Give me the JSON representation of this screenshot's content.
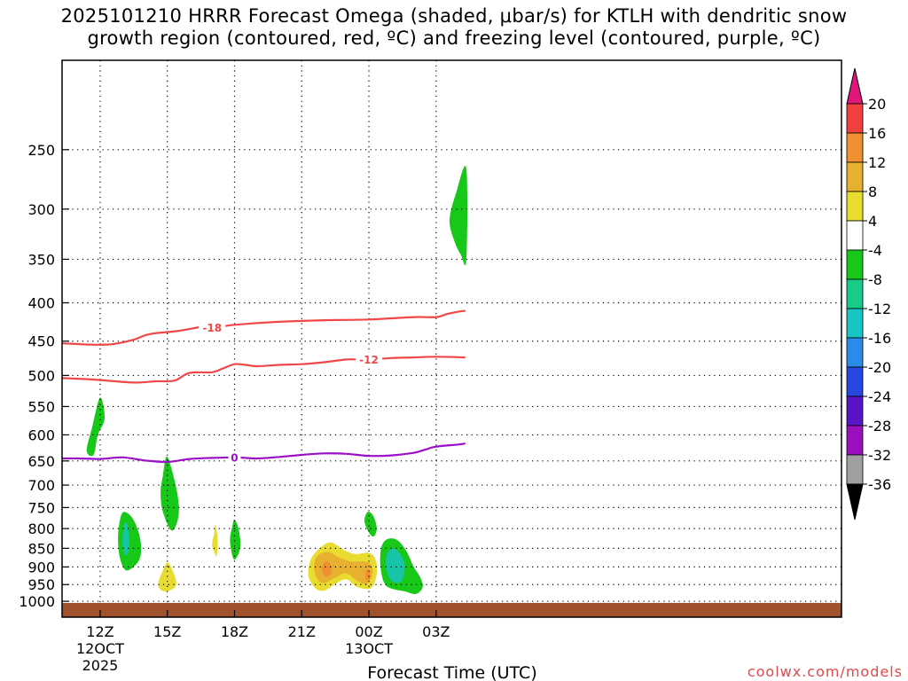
{
  "chart_data": {
    "type": "contour",
    "title_line1": "2025101210 HRRR Forecast Omega (shaded, μbar/s) for KTLH with dendritic snow",
    "title_line2": "growth region (contoured, red, ºC) and freezing level (contoured, purple, ºC)",
    "xlabel": "Forecast Time (UTC)",
    "credit": "coolwx.com/models",
    "x_range_hours": [
      -1.7,
      33.1
    ],
    "x_ticks": [
      {
        "hour": 0,
        "label": "12Z",
        "sub1": "12OCT",
        "sub2": "2025"
      },
      {
        "hour": 3,
        "label": "15Z",
        "sub1": "",
        "sub2": ""
      },
      {
        "hour": 6,
        "label": "18Z",
        "sub1": "",
        "sub2": ""
      },
      {
        "hour": 9,
        "label": "21Z",
        "sub1": "",
        "sub2": ""
      },
      {
        "hour": 12,
        "label": "00Z",
        "sub1": "13OCT",
        "sub2": ""
      },
      {
        "hour": 15,
        "label": "03Z",
        "sub1": "",
        "sub2": ""
      }
    ],
    "y_axis": "pressure (hPa), log scale, inverted",
    "y_range_hpa": [
      190,
      1050
    ],
    "y_ticks": [
      250,
      300,
      350,
      400,
      450,
      500,
      550,
      600,
      650,
      700,
      750,
      800,
      850,
      900,
      950,
      1000
    ],
    "gridlines": true,
    "terrain_top_hpa": 1005,
    "colorbar": {
      "bounds": [
        -36,
        -32,
        -28,
        -24,
        -20,
        -16,
        -12,
        -8,
        -4,
        4,
        8,
        12,
        16,
        20
      ],
      "labels": [
        "20",
        "16",
        "12",
        "8",
        "4",
        "-4",
        "-8",
        "-12",
        "-16",
        "-20",
        "-24",
        "-28",
        "-32",
        "-36"
      ],
      "above_color": "#e0167a",
      "below_color": "#000000",
      "bins": [
        {
          "range": [
            16,
            20
          ],
          "color": "#f04040"
        },
        {
          "range": [
            12,
            16
          ],
          "color": "#f09030"
        },
        {
          "range": [
            8,
            12
          ],
          "color": "#e8b030"
        },
        {
          "range": [
            4,
            8
          ],
          "color": "#e8dc30"
        },
        {
          "range": [
            -4,
            4
          ],
          "color": "#ffffff"
        },
        {
          "range": [
            -8,
            -4
          ],
          "color": "#18c818"
        },
        {
          "range": [
            -12,
            -8
          ],
          "color": "#18cc88"
        },
        {
          "range": [
            -16,
            -12
          ],
          "color": "#18c4c4"
        },
        {
          "range": [
            -20,
            -16
          ],
          "color": "#2a8ce8"
        },
        {
          "range": [
            -24,
            -20
          ],
          "color": "#2846e0"
        },
        {
          "range": [
            -28,
            -24
          ],
          "color": "#5a14c8"
        },
        {
          "range": [
            -32,
            -28
          ],
          "color": "#9a10c0"
        },
        {
          "range": [
            -36,
            -32
          ],
          "color": "#a0a0a0"
        }
      ]
    },
    "contours": [
      {
        "name": "contour-minus-18C",
        "value": -18,
        "label": "-18",
        "color": "#f04848",
        "label_hour": 5.0,
        "points": [
          [
            -1.7,
            453
          ],
          [
            -1.0,
            454
          ],
          [
            -0.2,
            455
          ],
          [
            0.6,
            454
          ],
          [
            1.5,
            448
          ],
          [
            2.0,
            442
          ],
          [
            2.5,
            439
          ],
          [
            3.5,
            436
          ],
          [
            4.5,
            431
          ],
          [
            5.0,
            432
          ],
          [
            6.0,
            428
          ],
          [
            8.0,
            424
          ],
          [
            10.0,
            422
          ],
          [
            12.0,
            421
          ],
          [
            14.0,
            418
          ],
          [
            15.0,
            418
          ],
          [
            15.5,
            414
          ],
          [
            16.0,
            411
          ],
          [
            16.3,
            410
          ]
        ]
      },
      {
        "name": "contour-minus-12C",
        "value": -12,
        "label": "-12",
        "color": "#f04848",
        "label_hour": 12.0,
        "points": [
          [
            -1.7,
            504
          ],
          [
            -1.0,
            505
          ],
          [
            0.0,
            507
          ],
          [
            1.5,
            511
          ],
          [
            2.5,
            509
          ],
          [
            3.0,
            509
          ],
          [
            3.4,
            507
          ],
          [
            4.0,
            496
          ],
          [
            5.0,
            495
          ],
          [
            5.5,
            489
          ],
          [
            6.0,
            483
          ],
          [
            6.5,
            484
          ],
          [
            7.0,
            486
          ],
          [
            8.0,
            484
          ],
          [
            9.0,
            483
          ],
          [
            10.0,
            480
          ],
          [
            11.0,
            476
          ],
          [
            11.5,
            476
          ],
          [
            12.0,
            476
          ],
          [
            13.0,
            474
          ],
          [
            14.0,
            473
          ],
          [
            15.0,
            472
          ],
          [
            16.3,
            473
          ]
        ]
      },
      {
        "name": "contour-0C",
        "value": 0,
        "label": "0",
        "color": "#9a10c8",
        "label_hour": 6.0,
        "points": [
          [
            -1.7,
            645
          ],
          [
            -1.0,
            645
          ],
          [
            0.0,
            646
          ],
          [
            1.0,
            643
          ],
          [
            2.0,
            649
          ],
          [
            3.0,
            652
          ],
          [
            4.0,
            646
          ],
          [
            5.0,
            644
          ],
          [
            6.0,
            643
          ],
          [
            7.0,
            645
          ],
          [
            8.0,
            642
          ],
          [
            9.0,
            638
          ],
          [
            10.0,
            635
          ],
          [
            11.0,
            636
          ],
          [
            12.0,
            640
          ],
          [
            13.0,
            639
          ],
          [
            14.0,
            634
          ],
          [
            14.5,
            628
          ],
          [
            15.0,
            622
          ],
          [
            16.0,
            618
          ],
          [
            16.3,
            616
          ]
        ]
      }
    ],
    "omega_regions": [
      {
        "name": "green-blob-12z-600",
        "color": "#18c818",
        "points": [
          [
            -0.3,
            638
          ],
          [
            -0.1,
            600
          ],
          [
            0.2,
            570
          ],
          [
            0.0,
            535
          ],
          [
            -0.35,
            585
          ],
          [
            -0.6,
            630
          ]
        ]
      },
      {
        "name": "green-blob-13z-850",
        "color": "#18c818",
        "points": [
          [
            0.8,
            825
          ],
          [
            0.9,
            775
          ],
          [
            1.1,
            760
          ],
          [
            1.5,
            780
          ],
          [
            1.8,
            830
          ],
          [
            1.75,
            880
          ],
          [
            1.2,
            910
          ],
          [
            0.9,
            880
          ]
        ]
      },
      {
        "name": "teal-core-13z-830",
        "color": "#18c4a8",
        "points": [
          [
            1.0,
            830
          ],
          [
            1.05,
            795
          ],
          [
            1.15,
            785
          ],
          [
            1.25,
            800
          ],
          [
            1.3,
            840
          ],
          [
            1.2,
            868
          ],
          [
            1.05,
            860
          ]
        ]
      },
      {
        "name": "green-blob-15z-720",
        "color": "#18c818",
        "points": [
          [
            2.7,
            715
          ],
          [
            2.8,
            680
          ],
          [
            2.95,
            642
          ],
          [
            3.15,
            660
          ],
          [
            3.45,
            720
          ],
          [
            3.5,
            770
          ],
          [
            3.2,
            805
          ],
          [
            2.8,
            760
          ]
        ]
      },
      {
        "name": "yellow-blob-15z-950",
        "color": "#e8dc30",
        "points": [
          [
            2.6,
            945
          ],
          [
            2.8,
            910
          ],
          [
            3.0,
            888
          ],
          [
            3.2,
            905
          ],
          [
            3.4,
            950
          ],
          [
            3.0,
            970
          ],
          [
            2.7,
            965
          ]
        ]
      },
      {
        "name": "yellow-sliver-17z-825",
        "color": "#e8dc30",
        "points": [
          [
            5.0,
            840
          ],
          [
            5.1,
            810
          ],
          [
            5.15,
            790
          ],
          [
            5.25,
            830
          ],
          [
            5.2,
            870
          ],
          [
            5.1,
            860
          ]
        ]
      },
      {
        "name": "green-blob-18z-830",
        "color": "#18c818",
        "points": [
          [
            5.8,
            825
          ],
          [
            5.9,
            795
          ],
          [
            6.0,
            778
          ],
          [
            6.2,
            805
          ],
          [
            6.25,
            850
          ],
          [
            6.0,
            880
          ],
          [
            5.85,
            855
          ]
        ]
      },
      {
        "name": "yellow-region-22z-910",
        "color": "#e8dc30",
        "points": [
          [
            9.3,
            925
          ],
          [
            9.4,
            880
          ],
          [
            9.8,
            850
          ],
          [
            10.3,
            835
          ],
          [
            10.9,
            855
          ],
          [
            11.4,
            865
          ],
          [
            12.0,
            862
          ],
          [
            12.3,
            880
          ],
          [
            12.35,
            920
          ],
          [
            12.1,
            960
          ],
          [
            11.5,
            958
          ],
          [
            11.0,
            935
          ],
          [
            10.5,
            948
          ],
          [
            10.0,
            968
          ],
          [
            9.6,
            960
          ]
        ]
      },
      {
        "name": "orange-region-22z-905",
        "color": "#e8b030",
        "points": [
          [
            9.55,
            900
          ],
          [
            9.7,
            870
          ],
          [
            10.2,
            860
          ],
          [
            10.7,
            875
          ],
          [
            11.2,
            885
          ],
          [
            11.8,
            885
          ],
          [
            12.1,
            895
          ],
          [
            12.15,
            920
          ],
          [
            11.9,
            948
          ],
          [
            11.5,
            940
          ],
          [
            11.0,
            918
          ],
          [
            10.5,
            930
          ],
          [
            10.0,
            945
          ],
          [
            9.7,
            935
          ]
        ]
      },
      {
        "name": "red-orange-core-22z-905",
        "color": "#f09030",
        "points": [
          [
            9.9,
            900
          ],
          [
            10.1,
            885
          ],
          [
            10.3,
            895
          ],
          [
            10.3,
            918
          ],
          [
            10.1,
            928
          ],
          [
            9.95,
            918
          ]
        ]
      },
      {
        "name": "red-orange-core-00z-920",
        "color": "#f09030",
        "points": [
          [
            11.85,
            915
          ],
          [
            11.95,
            905
          ],
          [
            12.05,
            915
          ],
          [
            12.05,
            935
          ],
          [
            11.95,
            940
          ],
          [
            11.85,
            932
          ]
        ]
      },
      {
        "name": "green-blob-00z-790",
        "color": "#18c818",
        "points": [
          [
            11.8,
            780
          ],
          [
            11.95,
            760
          ],
          [
            12.2,
            770
          ],
          [
            12.35,
            800
          ],
          [
            12.2,
            820
          ],
          [
            11.95,
            805
          ]
        ]
      },
      {
        "name": "green-region-01z-900",
        "color": "#18c818",
        "points": [
          [
            12.5,
            880
          ],
          [
            12.6,
            840
          ],
          [
            12.9,
            825
          ],
          [
            13.3,
            830
          ],
          [
            13.7,
            860
          ],
          [
            14.0,
            900
          ],
          [
            14.3,
            930
          ],
          [
            14.4,
            958
          ],
          [
            14.1,
            978
          ],
          [
            13.6,
            970
          ],
          [
            13.2,
            965
          ],
          [
            12.8,
            955
          ],
          [
            12.6,
            930
          ]
        ]
      },
      {
        "name": "teal-core-01z-890",
        "color": "#18c4a8",
        "points": [
          [
            12.75,
            890
          ],
          [
            12.85,
            860
          ],
          [
            13.1,
            850
          ],
          [
            13.4,
            865
          ],
          [
            13.6,
            895
          ],
          [
            13.5,
            935
          ],
          [
            13.2,
            945
          ],
          [
            12.9,
            930
          ]
        ]
      },
      {
        "name": "green-edge-04z-300",
        "color": "#18c818",
        "points": [
          [
            16.35,
            265
          ],
          [
            15.9,
            285
          ],
          [
            15.6,
            310
          ],
          [
            15.8,
            330
          ],
          [
            16.1,
            345
          ],
          [
            16.35,
            350
          ]
        ]
      }
    ]
  }
}
